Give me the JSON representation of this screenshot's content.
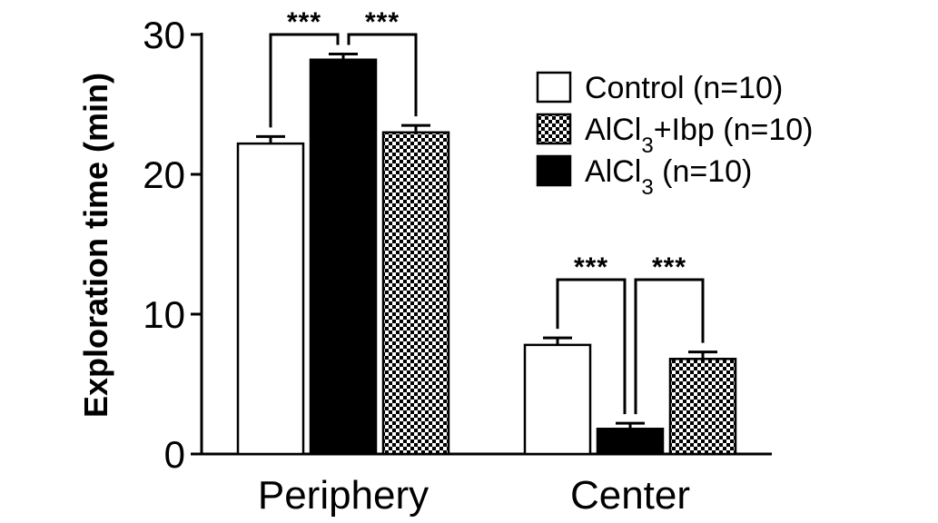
{
  "chart_data": {
    "type": "bar",
    "title": "",
    "xlabel": "",
    "ylabel": "Exploration time (min)",
    "ylim": [
      0,
      30
    ],
    "yticks": [
      "0",
      "10",
      "20",
      "30"
    ],
    "categories": [
      "Periphery",
      "Center"
    ],
    "series": [
      {
        "name": "Control (n=10)",
        "legend_main": "Control (n=10)",
        "legend_sub": "",
        "legend_tail": "",
        "pattern": "open",
        "values": [
          22.2,
          7.8
        ],
        "errors": [
          0.5,
          0.5
        ]
      },
      {
        "name": "AlCl3 (n=10)",
        "legend_main": "AlCl",
        "legend_sub": "3",
        "legend_tail": " (n=10)",
        "pattern": "solid",
        "values": [
          28.2,
          1.8
        ],
        "errors": [
          0.4,
          0.4
        ]
      },
      {
        "name": "AlCl3+Ibp (n=10)",
        "legend_main": "AlCl",
        "legend_sub": "3",
        "legend_tail": "+Ibp (n=10)",
        "pattern": "checkered",
        "values": [
          23.0,
          6.8
        ],
        "errors": [
          0.5,
          0.5
        ]
      }
    ],
    "legend_order": [
      0,
      2,
      1
    ],
    "legend_position": "top-right",
    "grid": false,
    "significance": [
      {
        "category": "Periphery",
        "pairs": [
          [
            0,
            1
          ],
          [
            1,
            2
          ]
        ],
        "label": "***"
      },
      {
        "category": "Center",
        "pairs": [
          [
            0,
            1
          ],
          [
            1,
            2
          ]
        ],
        "label": "***"
      }
    ],
    "colors": {
      "solid": "#000000",
      "open": "#ffffff",
      "stroke": "#000000"
    }
  }
}
